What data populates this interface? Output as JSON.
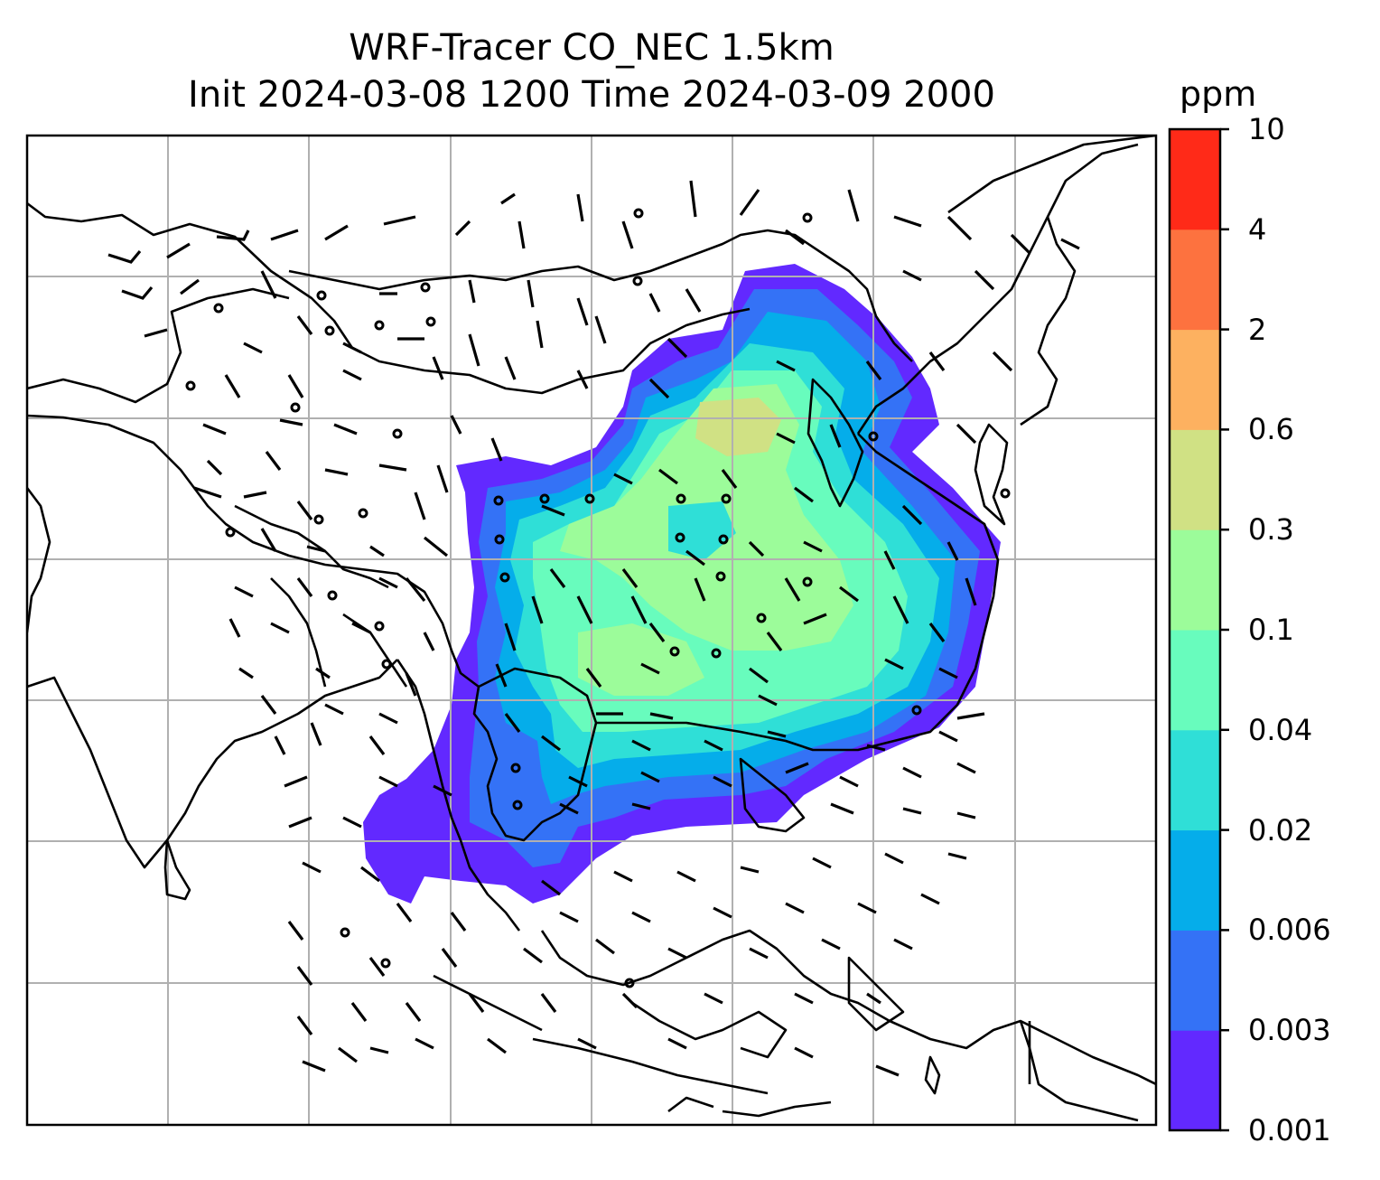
{
  "title_line1": "WRF-Tracer CO_NEC 1.5km",
  "title_line2": "Init 2024-03-08 1200 Time 2024-03-09 2000",
  "colorbar": {
    "unit": "ppm",
    "levels": [
      "0.001",
      "0.003",
      "0.006",
      "0.02",
      "0.04",
      "0.1",
      "0.3",
      "0.6",
      "2",
      "4",
      "10"
    ],
    "colors": [
      "#6229ff",
      "#3472f6",
      "#05adea",
      "#2fdfd7",
      "#68fcbd",
      "#9cfc9a",
      "#d0e184",
      "#fdb160",
      "#fd723f",
      "#ff2a18"
    ]
  },
  "map": {
    "gridlines": true,
    "overlays": [
      "coastlines",
      "country-borders",
      "wind-barbs",
      "tracer-concentration-fill"
    ]
  }
}
